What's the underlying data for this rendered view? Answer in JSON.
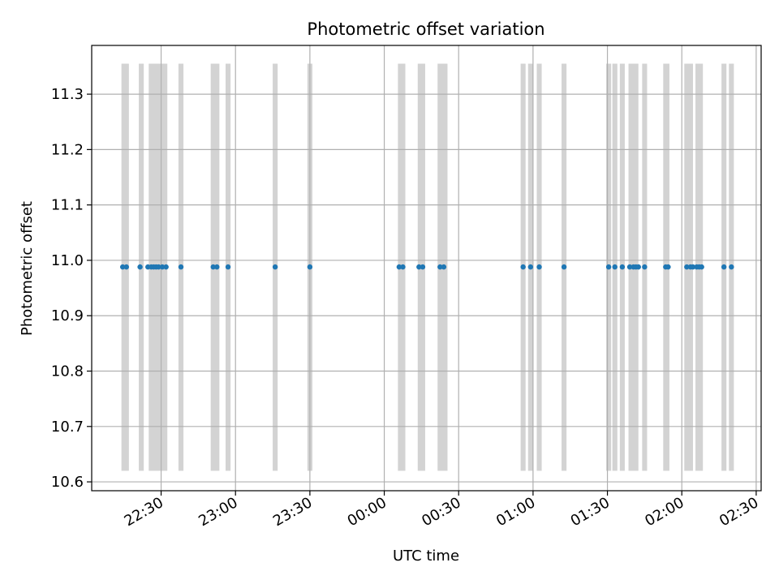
{
  "chart_data": {
    "type": "scatter",
    "title": "Photometric offset variation",
    "xlabel": "UTC time",
    "ylabel": "Photometric offset",
    "x_axis_type": "time",
    "xlim": [
      "22:02",
      "02:32"
    ],
    "ylim": [
      10.584,
      11.388
    ],
    "grid": true,
    "x_ticks": [
      "22:30",
      "23:00",
      "23:30",
      "00:00",
      "00:30",
      "01:00",
      "01:30",
      "02:00",
      "02:30"
    ],
    "y_ticks": [
      "10.6",
      "10.7",
      "10.8",
      "10.9",
      "11.0",
      "11.1",
      "11.2",
      "11.3"
    ],
    "series_color": "#1f77b4",
    "band_color": "#d3d3d3",
    "band_y_range": [
      10.62,
      11.355
    ],
    "bands": [
      [
        "22:14:00",
        "22:17:00"
      ],
      [
        "22:21:00",
        "22:23:00"
      ],
      [
        "22:25:00",
        "22:28:30"
      ],
      [
        "22:28:30",
        "22:32:30"
      ],
      [
        "22:37:00",
        "22:39:00"
      ],
      [
        "22:50:00",
        "22:53:30"
      ],
      [
        "22:56:00",
        "22:58:00"
      ],
      [
        "23:15:00",
        "23:17:00"
      ],
      [
        "23:29:00",
        "23:31:00"
      ],
      [
        "00:05:30",
        "00:08:30"
      ],
      [
        "00:13:30",
        "00:16:30"
      ],
      [
        "00:21:30",
        "00:25:30"
      ],
      [
        "00:55:00",
        "00:57:00"
      ],
      [
        "00:58:00",
        "01:00:00"
      ],
      [
        "01:01:30",
        "01:03:30"
      ],
      [
        "01:11:30",
        "01:13:30"
      ],
      [
        "01:29:30",
        "01:31:30"
      ],
      [
        "01:32:00",
        "01:34:00"
      ],
      [
        "01:35:00",
        "01:37:00"
      ],
      [
        "01:38:30",
        "01:42:30"
      ],
      [
        "01:44:00",
        "01:46:00"
      ],
      [
        "01:52:30",
        "01:55:00"
      ],
      [
        "02:01:00",
        "02:04:30"
      ],
      [
        "02:05:30",
        "02:08:30"
      ],
      [
        "02:16:00",
        "02:18:00"
      ],
      [
        "02:19:00",
        "02:21:00"
      ]
    ],
    "points": {
      "x": [
        "22:14:30",
        "22:16:00",
        "22:21:30",
        "22:24:40",
        "22:26:00",
        "22:27:00",
        "22:28:00",
        "22:29:00",
        "22:30:30",
        "22:32:00",
        "22:38:00",
        "22:51:00",
        "22:52:30",
        "22:57:00",
        "23:16:00",
        "23:30:00",
        "00:06:00",
        "00:07:30",
        "00:14:00",
        "00:15:30",
        "00:22:30",
        "00:24:00",
        "00:56:00",
        "00:59:00",
        "01:02:30",
        "01:12:30",
        "01:30:30",
        "01:33:00",
        "01:36:00",
        "01:39:00",
        "01:40:30",
        "01:41:30",
        "01:42:30",
        "01:45:00",
        "01:53:30",
        "01:54:30",
        "02:02:00",
        "02:03:30",
        "02:04:30",
        "02:06:00",
        "02:07:00",
        "02:08:00",
        "02:17:00",
        "02:20:00"
      ],
      "y": [
        10.988,
        10.988,
        10.988,
        10.988,
        10.988,
        10.988,
        10.988,
        10.988,
        10.988,
        10.988,
        10.988,
        10.988,
        10.988,
        10.988,
        10.988,
        10.988,
        10.988,
        10.988,
        10.988,
        10.988,
        10.988,
        10.988,
        10.988,
        10.988,
        10.988,
        10.988,
        10.988,
        10.988,
        10.988,
        10.988,
        10.988,
        10.988,
        10.988,
        10.988,
        10.988,
        10.988,
        10.988,
        10.988,
        10.988,
        10.988,
        10.988,
        10.988,
        10.988,
        10.988
      ]
    }
  }
}
